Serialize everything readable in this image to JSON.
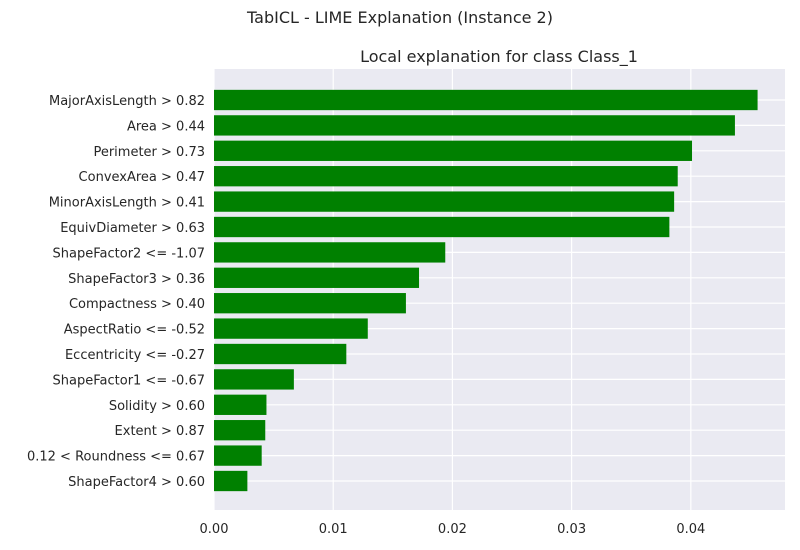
{
  "figure": {
    "suptitle": "TabICL - LIME Explanation (Instance 2)"
  },
  "chart_data": {
    "type": "bar",
    "orientation": "horizontal",
    "title": "Local explanation for class Class_1",
    "xlabel": "",
    "ylabel": "",
    "categories": [
      "MajorAxisLength > 0.82",
      "Area > 0.44",
      "Perimeter > 0.73",
      "ConvexArea > 0.47",
      "MinorAxisLength > 0.41",
      "EquivDiameter > 0.63",
      "ShapeFactor2 <= -1.07",
      "ShapeFactor3 > 0.36",
      "Compactness > 0.40",
      "AspectRatio <= -0.52",
      "Eccentricity <= -0.27",
      "ShapeFactor1 <= -0.67",
      "Solidity > 0.60",
      "Extent > 0.87",
      "0.12 < Roundness <= 0.67",
      "ShapeFactor4 > 0.60"
    ],
    "values": [
      0.0456,
      0.0437,
      0.0401,
      0.0389,
      0.0386,
      0.0382,
      0.0194,
      0.0172,
      0.0161,
      0.0129,
      0.0111,
      0.0067,
      0.0044,
      0.0043,
      0.004,
      0.0028
    ],
    "xlim": [
      0,
      0.0479
    ],
    "xticks": [
      0.0,
      0.01,
      0.02,
      0.03,
      0.04
    ],
    "xtick_labels": [
      "0.00",
      "0.01",
      "0.02",
      "0.03",
      "0.04"
    ],
    "grid": true,
    "colors": {
      "bar": "#008000",
      "axes_bg": "#eaeaf2",
      "grid": "#ffffff",
      "text": "#262626"
    }
  }
}
